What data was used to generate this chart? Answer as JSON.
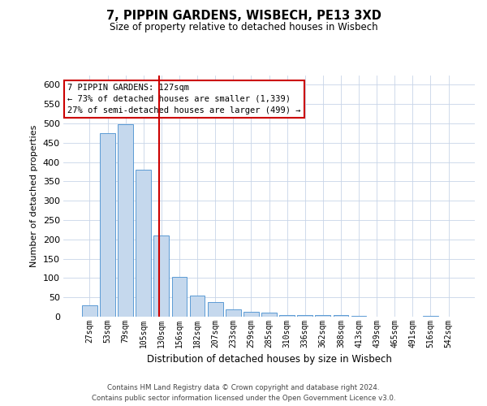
{
  "title1": "7, PIPPIN GARDENS, WISBECH, PE13 3XD",
  "title2": "Size of property relative to detached houses in Wisbech",
  "xlabel": "Distribution of detached houses by size in Wisbech",
  "ylabel": "Number of detached properties",
  "categories": [
    "27sqm",
    "53sqm",
    "79sqm",
    "105sqm",
    "130sqm",
    "156sqm",
    "182sqm",
    "207sqm",
    "233sqm",
    "259sqm",
    "285sqm",
    "310sqm",
    "336sqm",
    "362sqm",
    "388sqm",
    "413sqm",
    "439sqm",
    "465sqm",
    "491sqm",
    "516sqm",
    "542sqm"
  ],
  "values": [
    30,
    474,
    497,
    380,
    210,
    103,
    55,
    37,
    18,
    12,
    10,
    5,
    4,
    4,
    4,
    3,
    0,
    1,
    0,
    3,
    0
  ],
  "bar_color": "#c5d8ed",
  "bar_edge_color": "#5b9bd5",
  "ylim": [
    0,
    625
  ],
  "yticks": [
    0,
    50,
    100,
    150,
    200,
    250,
    300,
    350,
    400,
    450,
    500,
    550,
    600
  ],
  "vline_color": "#cc0000",
  "annotation_text": "7 PIPPIN GARDENS: 127sqm\n← 73% of detached houses are smaller (1,339)\n27% of semi-detached houses are larger (499) →",
  "annotation_box_color": "#ffffff",
  "annotation_box_edge": "#cc0000",
  "footer1": "Contains HM Land Registry data © Crown copyright and database right 2024.",
  "footer2": "Contains public sector information licensed under the Open Government Licence v3.0.",
  "background_color": "#ffffff",
  "grid_color": "#c8d4e8"
}
